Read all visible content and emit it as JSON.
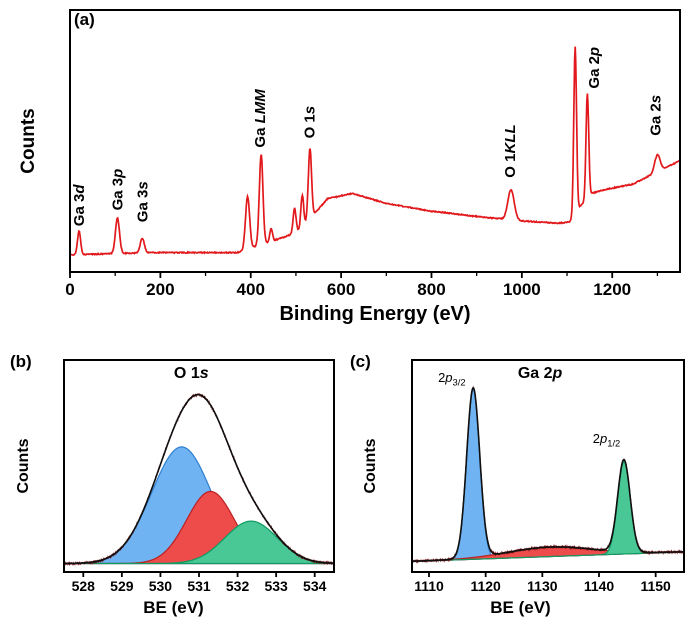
{
  "figure": {
    "panel_a_label": "(a)",
    "panel_b_label": "(b)",
    "panel_c_label": "(c)"
  },
  "chart_data": [
    {
      "id": "survey",
      "type": "line",
      "title": "XPS survey spectrum",
      "xlabel": "Binding Energy (eV)",
      "ylabel": "Counts",
      "xlim": [
        0,
        1350
      ],
      "xticks": [
        0,
        200,
        400,
        600,
        800,
        1000,
        1200
      ],
      "xtick_labels": [
        "0",
        "200",
        "400",
        "600",
        "800",
        "1000",
        "1200"
      ],
      "minor_xticks": [
        100,
        300,
        500,
        700,
        900,
        1100,
        1300
      ],
      "line_color": "#e2191c",
      "background_points": [
        [
          0,
          0.065
        ],
        [
          90,
          0.07
        ],
        [
          180,
          0.074
        ],
        [
          370,
          0.074
        ],
        [
          400,
          0.092
        ],
        [
          430,
          0.108
        ],
        [
          465,
          0.128
        ],
        [
          500,
          0.15
        ],
        [
          535,
          0.21
        ],
        [
          570,
          0.28
        ],
        [
          625,
          0.3
        ],
        [
          700,
          0.262
        ],
        [
          800,
          0.232
        ],
        [
          900,
          0.212
        ],
        [
          1000,
          0.195
        ],
        [
          1080,
          0.186
        ],
        [
          1105,
          0.19
        ],
        [
          1122,
          0.235
        ],
        [
          1138,
          0.268
        ],
        [
          1155,
          0.3
        ],
        [
          1185,
          0.315
        ],
        [
          1245,
          0.335
        ],
        [
          1350,
          0.425
        ]
      ],
      "peaks": [
        {
          "c": 20,
          "h": 0.09,
          "s": 3.5
        },
        {
          "c": 105,
          "h": 0.135,
          "s": 4.5
        },
        {
          "c": 160,
          "h": 0.056,
          "s": 4.5
        },
        {
          "c": 393,
          "h": 0.2,
          "s": 4.5
        },
        {
          "c": 423,
          "h": 0.345,
          "s": 4.0
        },
        {
          "c": 445,
          "h": 0.05,
          "s": 3.0
        },
        {
          "c": 497,
          "h": 0.095,
          "s": 3.2
        },
        {
          "c": 514,
          "h": 0.12,
          "s": 3.0
        },
        {
          "c": 531,
          "h": 0.27,
          "s": 3.6
        },
        {
          "c": 976,
          "h": 0.115,
          "s": 7.0
        },
        {
          "c": 1118,
          "h": 0.635,
          "s": 3.0
        },
        {
          "c": 1145,
          "h": 0.4,
          "s": 3.0
        },
        {
          "c": 1300,
          "h": 0.065,
          "s": 6.0
        }
      ],
      "peak_labels": [
        {
          "x": 20,
          "y": 0.175,
          "parts": [
            {
              "t": "Ga 3"
            },
            {
              "t": "d",
              "i": true
            }
          ]
        },
        {
          "x": 105,
          "y": 0.235,
          "parts": [
            {
              "t": "Ga 3"
            },
            {
              "t": "p",
              "i": true
            }
          ]
        },
        {
          "x": 160,
          "y": 0.19,
          "parts": [
            {
              "t": "Ga 3"
            },
            {
              "t": "s",
              "i": true
            }
          ]
        },
        {
          "x": 421,
          "y": 0.475,
          "parts": [
            {
              "t": "Ga "
            },
            {
              "t": "LMM",
              "i": true
            }
          ]
        },
        {
          "x": 530,
          "y": 0.51,
          "parts": [
            {
              "t": "O 1"
            },
            {
              "t": "s",
              "i": true
            }
          ]
        },
        {
          "x": 974,
          "y": 0.36,
          "parts": [
            {
              "t": "O 1"
            },
            {
              "t": "KLL",
              "i": true
            }
          ]
        },
        {
          "x": 1160,
          "y": 0.7,
          "parts": [
            {
              "t": "Ga 2"
            },
            {
              "t": "p",
              "i": true
            }
          ]
        },
        {
          "x": 1296,
          "y": 0.52,
          "parts": [
            {
              "t": "Ga 2"
            },
            {
              "t": "s",
              "i": true
            }
          ]
        }
      ]
    },
    {
      "id": "o1s",
      "type": "fitted",
      "title": "O 1s core level with fitted components",
      "title_parts": [
        {
          "t": "O 1"
        },
        {
          "t": "s",
          "i": true
        }
      ],
      "title_x": 530.8,
      "title_y": 0.915,
      "xlabel": "BE (eV)",
      "ylabel": "Counts",
      "xlim": [
        527.5,
        534.5
      ],
      "xticks": [
        528,
        529,
        530,
        531,
        532,
        533,
        534
      ],
      "xtick_labels": [
        "528",
        "529",
        "530",
        "531",
        "532",
        "533",
        "534"
      ],
      "baseline": [
        [
          527.5,
          0.04
        ],
        [
          534.5,
          0.04
        ]
      ],
      "envelope_color": "#101010",
      "raw_color": "#7a1416",
      "components": [
        {
          "c": 530.55,
          "h": 0.55,
          "s": 0.78,
          "fill": "#6fb3f2",
          "stroke": "#2f7fd0"
        },
        {
          "c": 531.3,
          "h": 0.34,
          "s": 0.62,
          "fill": "#ee4b4b",
          "stroke": "#bb2020"
        },
        {
          "c": 532.35,
          "h": 0.2,
          "s": 0.68,
          "fill": "#49c795",
          "stroke": "#0e9c63"
        }
      ]
    },
    {
      "id": "ga2p",
      "type": "fitted",
      "title": "Ga 2p core level with fitted components",
      "title_parts": [
        {
          "t": "Ga 2"
        },
        {
          "t": "p",
          "i": true
        }
      ],
      "title_x": 1129.6,
      "title_y": 0.915,
      "xlabel": "BE (eV)",
      "ylabel": "Counts",
      "xlim": [
        1107,
        1155
      ],
      "xticks": [
        1110,
        1120,
        1130,
        1140,
        1150
      ],
      "xtick_labels": [
        "1110",
        "1120",
        "1130",
        "1140",
        "1150"
      ],
      "baseline": [
        [
          1107,
          0.05
        ],
        [
          1155,
          0.095
        ]
      ],
      "envelope_color": "#101010",
      "raw_color": "#7a1416",
      "components": [
        {
          "c": 1117.8,
          "h": 0.8,
          "s": 1.15,
          "fill": "#6fb3f2",
          "stroke": "#2f7fd0"
        },
        {
          "c": 1131.5,
          "h": 0.045,
          "s": 7.5,
          "fill": "#ee4b4b",
          "stroke": "#bb2020"
        },
        {
          "c": 1144.4,
          "h": 0.435,
          "s": 1.1,
          "fill": "#49c795",
          "stroke": "#0e9c63"
        }
      ],
      "annotations": [
        {
          "x": 1111.6,
          "y": 0.896,
          "anchor": "start",
          "parts": [
            {
              "t": "2"
            },
            {
              "t": "p",
              "i": true
            },
            {
              "t": "3/2",
              "sub": true
            }
          ]
        },
        {
          "x": 1138.9,
          "y": 0.608,
          "anchor": "start",
          "parts": [
            {
              "t": "2"
            },
            {
              "t": "p",
              "i": true
            },
            {
              "t": "1/2",
              "sub": true
            }
          ]
        }
      ]
    }
  ]
}
